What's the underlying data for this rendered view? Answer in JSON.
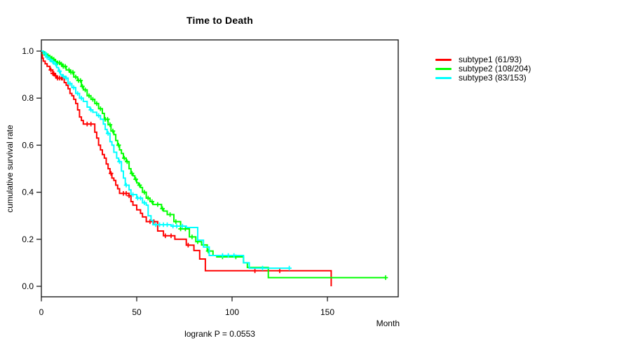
{
  "chart_data": {
    "type": "line",
    "variant": "kaplan-meier-step-survival",
    "title": "Time to Death",
    "xlabel": "Month",
    "ylabel": "cumulative survival rate",
    "annotation": "logrank P = 0.0553",
    "x_ticks": [
      0,
      50,
      100,
      150
    ],
    "y_ticks": [
      0.0,
      0.2,
      0.4,
      0.6,
      0.8,
      1.0
    ],
    "y_tick_labels": [
      "0.0",
      "0.2",
      "0.4",
      "0.6",
      "0.8",
      "1.0"
    ],
    "xlim": [
      0,
      187
    ],
    "ylim": [
      0,
      1
    ],
    "grid": false,
    "legend_position": "right-outside",
    "axis_color": "#1c1c1c",
    "series": [
      {
        "name": "subtype1",
        "label": "subtype1 (61/93)",
        "events_over_n": "61/93",
        "color": "#ff0000",
        "steps": [
          [
            0,
            1.0
          ],
          [
            0.5,
            0.97
          ],
          [
            1,
            0.957
          ],
          [
            2,
            0.946
          ],
          [
            3,
            0.935
          ],
          [
            4.5,
            0.92
          ],
          [
            6,
            0.905
          ],
          [
            7,
            0.895
          ],
          [
            8,
            0.885
          ],
          [
            12,
            0.866
          ],
          [
            13,
            0.855
          ],
          [
            14,
            0.84
          ],
          [
            15,
            0.82
          ],
          [
            16,
            0.81
          ],
          [
            17,
            0.795
          ],
          [
            18,
            0.777
          ],
          [
            19,
            0.75
          ],
          [
            20,
            0.72
          ],
          [
            21,
            0.705
          ],
          [
            22,
            0.69
          ],
          [
            28,
            0.655
          ],
          [
            29,
            0.63
          ],
          [
            30,
            0.6
          ],
          [
            31,
            0.58
          ],
          [
            32,
            0.56
          ],
          [
            33,
            0.545
          ],
          [
            34,
            0.52
          ],
          [
            35,
            0.5
          ],
          [
            36,
            0.48
          ],
          [
            37,
            0.46
          ],
          [
            38,
            0.45
          ],
          [
            39,
            0.43
          ],
          [
            40,
            0.415
          ],
          [
            41,
            0.395
          ],
          [
            46,
            0.385
          ],
          [
            47,
            0.36
          ],
          [
            48,
            0.345
          ],
          [
            50,
            0.325
          ],
          [
            52,
            0.31
          ],
          [
            53,
            0.295
          ],
          [
            55,
            0.275
          ],
          [
            61,
            0.235
          ],
          [
            64,
            0.215
          ],
          [
            70,
            0.2
          ],
          [
            76,
            0.175
          ],
          [
            80,
            0.152
          ],
          [
            83,
            0.116
          ],
          [
            86,
            0.066
          ],
          [
            152,
            0.0
          ]
        ],
        "censor_months": [
          5,
          6,
          6.5,
          7.5,
          8.5,
          9.5,
          10.5,
          11,
          24,
          26,
          36.5,
          43,
          44.5,
          46,
          57,
          59,
          65,
          68,
          77,
          112,
          125
        ]
      },
      {
        "name": "subtype2",
        "label": "subtype2 (108/204)",
        "events_over_n": "108/204",
        "color": "#00ff00",
        "steps": [
          [
            0,
            1.0
          ],
          [
            1,
            0.99
          ],
          [
            2,
            0.985
          ],
          [
            3,
            0.98
          ],
          [
            4,
            0.975
          ],
          [
            5,
            0.97
          ],
          [
            6,
            0.965
          ],
          [
            7,
            0.955
          ],
          [
            8,
            0.95
          ],
          [
            10,
            0.945
          ],
          [
            11,
            0.935
          ],
          [
            13,
            0.92
          ],
          [
            15,
            0.91
          ],
          [
            17,
            0.89
          ],
          [
            19,
            0.875
          ],
          [
            21,
            0.85
          ],
          [
            22,
            0.835
          ],
          [
            24,
            0.81
          ],
          [
            26,
            0.795
          ],
          [
            28,
            0.777
          ],
          [
            30,
            0.755
          ],
          [
            32,
            0.735
          ],
          [
            33,
            0.71
          ],
          [
            35,
            0.687
          ],
          [
            36.5,
            0.66
          ],
          [
            38,
            0.645
          ],
          [
            39,
            0.62
          ],
          [
            40,
            0.6
          ],
          [
            41,
            0.58
          ],
          [
            42,
            0.565
          ],
          [
            43,
            0.545
          ],
          [
            44.5,
            0.53
          ],
          [
            46,
            0.5
          ],
          [
            47,
            0.48
          ],
          [
            48,
            0.47
          ],
          [
            49,
            0.455
          ],
          [
            50,
            0.44
          ],
          [
            51,
            0.43
          ],
          [
            52,
            0.42
          ],
          [
            53,
            0.4
          ],
          [
            55,
            0.375
          ],
          [
            57,
            0.36
          ],
          [
            58.5,
            0.348
          ],
          [
            63,
            0.33
          ],
          [
            64,
            0.32
          ],
          [
            66,
            0.305
          ],
          [
            69.5,
            0.275
          ],
          [
            73,
            0.244
          ],
          [
            77.6,
            0.21
          ],
          [
            81,
            0.19
          ],
          [
            84,
            0.176
          ],
          [
            87,
            0.15
          ],
          [
            90,
            0.131
          ],
          [
            92,
            0.125
          ],
          [
            106,
            0.1
          ],
          [
            108,
            0.08
          ],
          [
            119,
            0.037
          ],
          [
            180.5,
            0.037
          ]
        ],
        "censor_months": [
          1.5,
          2.5,
          3.5,
          4.5,
          5.5,
          6.5,
          7.5,
          8.5,
          9.5,
          10.5,
          11.5,
          12.5,
          14.5,
          15.5,
          16.5,
          18,
          19.5,
          20.5,
          21.5,
          23,
          25,
          27,
          29,
          31,
          33.5,
          34.7,
          36,
          37.5,
          40.5,
          43.5,
          45,
          47.5,
          49.5,
          51.5,
          54,
          56,
          58,
          61,
          63.5,
          67.5,
          70.5,
          73,
          75.5,
          79,
          82,
          87.5,
          95,
          102,
          180.5
        ]
      },
      {
        "name": "subtype3",
        "label": "subtype3 (83/153)",
        "events_over_n": "83/153",
        "color": "#00ffff",
        "steps": [
          [
            0,
            1.0
          ],
          [
            1,
            0.99
          ],
          [
            2.5,
            0.975
          ],
          [
            4,
            0.965
          ],
          [
            5,
            0.955
          ],
          [
            6.5,
            0.945
          ],
          [
            8,
            0.93
          ],
          [
            9,
            0.915
          ],
          [
            10,
            0.9
          ],
          [
            11,
            0.893
          ],
          [
            12.5,
            0.885
          ],
          [
            14,
            0.862
          ],
          [
            16,
            0.845
          ],
          [
            18,
            0.82
          ],
          [
            20,
            0.8
          ],
          [
            22,
            0.786
          ],
          [
            24,
            0.762
          ],
          [
            25.5,
            0.75
          ],
          [
            27,
            0.74
          ],
          [
            29,
            0.726
          ],
          [
            31,
            0.71
          ],
          [
            32.5,
            0.69
          ],
          [
            33.5,
            0.667
          ],
          [
            34.5,
            0.65
          ],
          [
            36,
            0.615
          ],
          [
            37,
            0.6
          ],
          [
            38,
            0.57
          ],
          [
            39.5,
            0.545
          ],
          [
            40.5,
            0.53
          ],
          [
            42,
            0.49
          ],
          [
            43,
            0.46
          ],
          [
            44,
            0.43
          ],
          [
            46,
            0.41
          ],
          [
            47,
            0.39
          ],
          [
            50,
            0.375
          ],
          [
            53,
            0.355
          ],
          [
            55,
            0.345
          ],
          [
            56,
            0.3
          ],
          [
            57.5,
            0.28
          ],
          [
            58.5,
            0.262
          ],
          [
            68,
            0.256
          ],
          [
            76,
            0.25
          ],
          [
            82,
            0.196
          ],
          [
            85,
            0.167
          ],
          [
            88,
            0.131
          ],
          [
            106,
            0.1
          ],
          [
            109,
            0.077
          ],
          [
            130,
            0.077
          ]
        ],
        "censor_months": [
          2,
          3,
          4.5,
          6,
          7.5,
          9.5,
          11.5,
          13,
          15,
          17,
          19,
          21,
          26,
          30,
          35,
          41,
          44.5,
          48,
          50.5,
          52,
          54,
          60,
          62,
          64,
          66,
          69,
          71,
          74,
          95,
          98,
          101,
          116,
          130
        ]
      }
    ]
  }
}
